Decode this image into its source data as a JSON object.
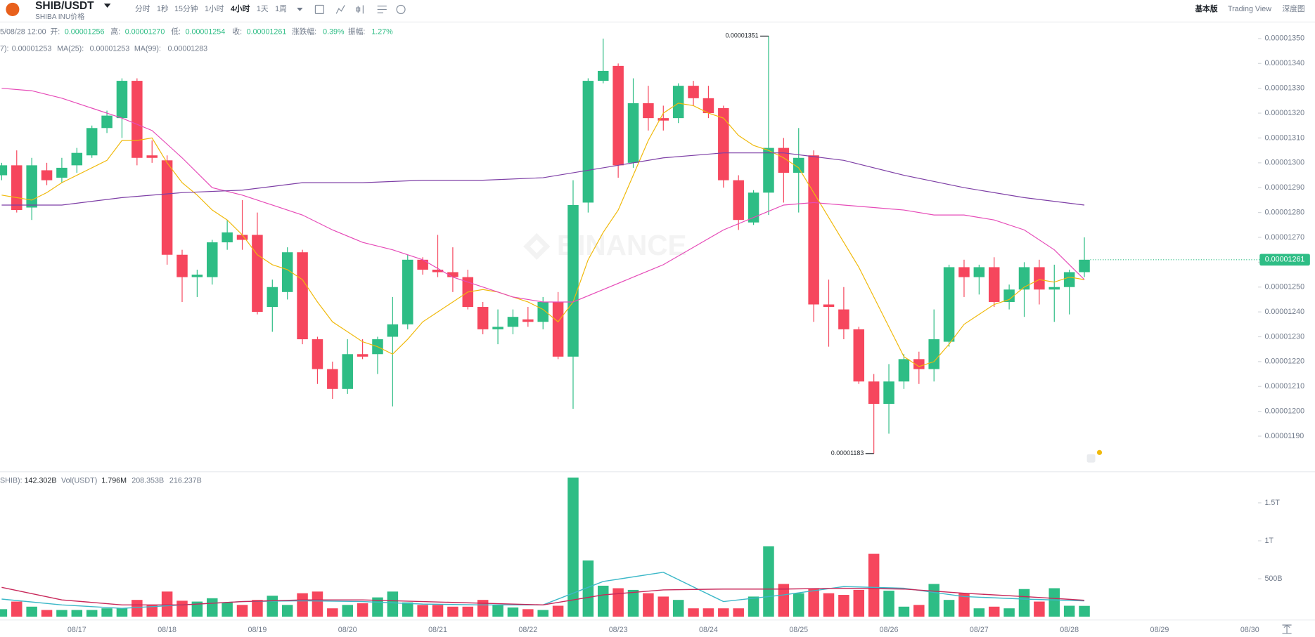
{
  "header": {
    "pair": "SHIB/USDT",
    "subtitle": "SHIBA INU价格",
    "intervals": [
      "分时",
      "1秒",
      "15分钟",
      "1小时",
      "4小时",
      "1天",
      "1周"
    ],
    "views": [
      "基本版",
      "Trading View",
      "深度图"
    ],
    "ohlc": {
      "time": "5/08/28 12:00",
      "labels": [
        "开:",
        "高:",
        "低:",
        "收:",
        "涨跌幅:",
        "振幅:"
      ],
      "values": [
        "0.00001256",
        "0.00001270",
        "0.00001254",
        "0.00001261",
        "0.39%",
        "1.27%"
      ]
    },
    "watermark": "BINANCE"
  },
  "chart_data": [
    {
      "type": "candlestick",
      "up_color": "#2ebd85",
      "down_color": "#f6465d",
      "open": [
        1.295e-05,
        1.299e-05,
        1.282e-05,
        1.297e-05,
        1.294e-05,
        1.299e-05,
        1.303e-05,
        1.314e-05,
        1.318e-05,
        1.333e-05,
        1.303e-05,
        1.301e-05,
        1.263e-05,
        1.254e-05,
        1.254e-05,
        1.268e-05,
        1.271e-05,
        1.271e-05,
        1.242e-05,
        1.248e-05,
        1.264e-05,
        1.229e-05,
        1.217e-05,
        1.209e-05,
        1.223e-05,
        1.223e-05,
        1.23e-05,
        1.235e-05,
        1.261e-05,
        1.257e-05,
        1.256e-05,
        1.254e-05,
        1.242e-05,
        1.233e-05,
        1.234e-05,
        1.237e-05,
        1.236e-05,
        1.244e-05,
        1.222e-05,
        1.284e-05,
        1.333e-05,
        1.339e-05,
        1.3e-05,
        1.324e-05,
        1.318e-05,
        1.318e-05,
        1.331e-05,
        1.326e-05,
        1.322e-05,
        1.293e-05,
        1.276e-05,
        1.288e-05,
        1.306e-05,
        1.296e-05,
        1.303e-05,
        1.243e-05,
        1.241e-05,
        1.233e-05,
        1.212e-05,
        1.203e-05,
        1.212e-05,
        1.221e-05,
        1.217e-05,
        1.228e-05,
        1.258e-05,
        1.254e-05,
        1.258e-05,
        1.244e-05,
        1.249e-05,
        1.258e-05,
        1.249e-05,
        1.25e-05,
        1.256e-05
      ],
      "high": [
        1.3e-05,
        1.305e-05,
        1.302e-05,
        1.3e-05,
        1.302e-05,
        1.306e-05,
        1.315e-05,
        1.321e-05,
        1.334e-05,
        1.334e-05,
        1.309e-05,
        1.303e-05,
        1.265e-05,
        1.257e-05,
        1.269e-05,
        1.277e-05,
        1.285e-05,
        1.28e-05,
        1.253e-05,
        1.266e-05,
        1.265e-05,
        1.23e-05,
        1.22e-05,
        1.229e-05,
        1.229e-05,
        1.23e-05,
        1.246e-05,
        1.263e-05,
        1.262e-05,
        1.271e-05,
        1.266e-05,
        1.257e-05,
        1.244e-05,
        1.241e-05,
        1.241e-05,
        1.242e-05,
        1.246e-05,
        1.248e-05,
        1.293e-05,
        1.334e-05,
        1.35e-05,
        1.34e-05,
        1.334e-05,
        1.331e-05,
        1.323e-05,
        1.332e-05,
        1.333e-05,
        1.331e-05,
        1.323e-05,
        1.295e-05,
        1.289e-05,
        1.351e-05,
        1.31e-05,
        1.314e-05,
        1.305e-05,
        1.253e-05,
        1.25e-05,
        1.234e-05,
        1.215e-05,
        1.219e-05,
        1.223e-05,
        1.224e-05,
        1.241e-05,
        1.259e-05,
        1.261e-05,
        1.259e-05,
        1.262e-05,
        1.251e-05,
        1.26e-05,
        1.261e-05,
        1.259e-05,
        1.257e-05,
        1.27e-05
      ],
      "low": [
        1.293e-05,
        1.28e-05,
        1.277e-05,
        1.291e-05,
        1.292e-05,
        1.296e-05,
        1.302e-05,
        1.312e-05,
        1.31e-05,
        1.299e-05,
        1.3e-05,
        1.259e-05,
        1.244e-05,
        1.246e-05,
        1.251e-05,
        1.265e-05,
        1.265e-05,
        1.239e-05,
        1.232e-05,
        1.245e-05,
        1.227e-05,
        1.211e-05,
        1.205e-05,
        1.207e-05,
        1.221e-05,
        1.215e-05,
        1.202e-05,
        1.233e-05,
        1.255e-05,
        1.254e-05,
        1.248e-05,
        1.241e-05,
        1.231e-05,
        1.227e-05,
        1.231e-05,
        1.234e-05,
        1.233e-05,
        1.221e-05,
        1.201e-05,
        1.28e-05,
        1.332e-05,
        1.294e-05,
        1.298e-05,
        1.313e-05,
        1.313e-05,
        1.316e-05,
        1.323e-05,
        1.318e-05,
        1.29e-05,
        1.273e-05,
        1.275e-05,
        1.279e-05,
        1.284e-05,
        1.28e-05,
        1.236e-05,
        1.226e-05,
        1.229e-05,
        1.211e-05,
        1.183e-05,
        1.191e-05,
        1.209e-05,
        1.211e-05,
        1.212e-05,
        1.226e-05,
        1.246e-05,
        1.247e-05,
        1.242e-05,
        1.241e-05,
        1.238e-05,
        1.243e-05,
        1.236e-05,
        1.239e-05,
        1.254e-05
      ],
      "close": [
        1.299e-05,
        1.281e-05,
        1.299e-05,
        1.293e-05,
        1.298e-05,
        1.304e-05,
        1.314e-05,
        1.319e-05,
        1.333e-05,
        1.302e-05,
        1.302e-05,
        1.263e-05,
        1.254e-05,
        1.255e-05,
        1.268e-05,
        1.272e-05,
        1.269e-05,
        1.24e-05,
        1.25e-05,
        1.264e-05,
        1.229e-05,
        1.217e-05,
        1.209e-05,
        1.223e-05,
        1.222e-05,
        1.229e-05,
        1.235e-05,
        1.261e-05,
        1.257e-05,
        1.256e-05,
        1.254e-05,
        1.242e-05,
        1.233e-05,
        1.234e-05,
        1.238e-05,
        1.236e-05,
        1.244e-05,
        1.222e-05,
        1.283e-05,
        1.333e-05,
        1.337e-05,
        1.299e-05,
        1.324e-05,
        1.318e-05,
        1.317e-05,
        1.331e-05,
        1.326e-05,
        1.32e-05,
        1.293e-05,
        1.277e-05,
        1.288e-05,
        1.306e-05,
        1.296e-05,
        1.302e-05,
        1.243e-05,
        1.242e-05,
        1.233e-05,
        1.212e-05,
        1.203e-05,
        1.212e-05,
        1.221e-05,
        1.217e-05,
        1.229e-05,
        1.258e-05,
        1.254e-05,
        1.258e-05,
        1.244e-05,
        1.249e-05,
        1.258e-05,
        1.249e-05,
        1.25e-05,
        1.256e-05,
        1.261e-05
      ],
      "series": [
        {
          "name": "7):",
          "color": "#f0b90b",
          "last_label": "0.00001253",
          "values": [
            1.287e-05,
            1.286e-05,
            1.285e-05,
            1.288e-05,
            1.292e-05,
            1.295e-05,
            1.298e-05,
            1.301e-05,
            1.309e-05,
            1.309e-05,
            1.31e-05,
            1.3e-05,
            1.292e-05,
            1.287e-05,
            1.281e-05,
            1.277e-05,
            1.271e-05,
            1.263e-05,
            1.259e-05,
            1.257e-05,
            1.253e-05,
            1.244e-05,
            1.236e-05,
            1.232e-05,
            1.228e-05,
            1.226e-05,
            1.223e-05,
            1.229e-05,
            1.236e-05,
            1.24e-05,
            1.244e-05,
            1.248e-05,
            1.249e-05,
            1.248e-05,
            1.246e-05,
            1.244e-05,
            1.241e-05,
            1.236e-05,
            1.244e-05,
            1.261e-05,
            1.272e-05,
            1.281e-05,
            1.295e-05,
            1.309e-05,
            1.32e-05,
            1.324e-05,
            1.323e-05,
            1.32e-05,
            1.318e-05,
            1.311e-05,
            1.307e-05,
            1.305e-05,
            1.302e-05,
            1.298e-05,
            1.288e-05,
            1.278e-05,
            1.268e-05,
            1.258e-05,
            1.246e-05,
            1.234e-05,
            1.222e-05,
            1.218e-05,
            1.22e-05,
            1.227e-05,
            1.235e-05,
            1.239e-05,
            1.243e-05,
            1.245e-05,
            1.25e-05,
            1.253e-05,
            1.252e-05,
            1.254e-05,
            1.253e-05
          ]
        },
        {
          "name": "MA(25):",
          "color": "#e64bb8",
          "last_label": "0.00001253",
          "values": [
            1.33e-05,
            1.329e-05,
            1.326e-05,
            1.322e-05,
            1.318e-05,
            1.313e-05,
            1.302e-05,
            1.29e-05,
            1.287e-05,
            1.283e-05,
            1.279e-05,
            1.273e-05,
            1.268e-05,
            1.265e-05,
            1.261e-05,
            1.254e-05,
            1.25e-05,
            1.246e-05,
            1.244e-05,
            1.244e-05,
            1.249e-05,
            1.254e-05,
            1.259e-05,
            1.266e-05,
            1.273e-05,
            1.278e-05,
            1.283e-05,
            1.284e-05,
            1.283e-05,
            1.282e-05,
            1.281e-05,
            1.279e-05,
            1.279e-05,
            1.277e-05,
            1.273e-05,
            1.265e-05,
            1.253e-05
          ]
        },
        {
          "name": "MA(99):",
          "color": "#7e3fa6",
          "last_label": "0.00001283",
          "values": [
            1.283e-05,
            1.283e-05,
            1.286e-05,
            1.288e-05,
            1.289e-05,
            1.292e-05,
            1.292e-05,
            1.293e-05,
            1.293e-05,
            1.294e-05,
            1.298e-05,
            1.302e-05,
            1.304e-05,
            1.304e-05,
            1.301e-05,
            1.295e-05,
            1.29e-05,
            1.286e-05,
            1.283e-05
          ]
        }
      ],
      "annotations": [
        {
          "label": "0.00001351",
          "value": 1.351e-05
        },
        {
          "label": "0.00001183",
          "value": 1.183e-05
        }
      ],
      "last_price_label": "0.00001261",
      "ylim": [
        1.176e-05,
        1.356e-05
      ],
      "yticks": [
        {
          "value": 1.19e-05,
          "label": "0.00001190"
        },
        {
          "value": 1.2e-05,
          "label": "0.00001200"
        },
        {
          "value": 1.21e-05,
          "label": "0.00001210"
        },
        {
          "value": 1.22e-05,
          "label": "0.00001220"
        },
        {
          "value": 1.23e-05,
          "label": "0.00001230"
        },
        {
          "value": 1.24e-05,
          "label": "0.00001240"
        },
        {
          "value": 1.25e-05,
          "label": "0.00001250"
        },
        {
          "value": 1.26e-05,
          "label": "0.00001260"
        },
        {
          "value": 1.27e-05,
          "label": "0.00001270"
        },
        {
          "value": 1.28e-05,
          "label": "0.00001280"
        },
        {
          "value": 1.29e-05,
          "label": "0.00001290"
        },
        {
          "value": 1.3e-05,
          "label": "0.00001300"
        },
        {
          "value": 1.31e-05,
          "label": "0.00001310"
        },
        {
          "value": 1.32e-05,
          "label": "0.00001320"
        },
        {
          "value": 1.33e-05,
          "label": "0.00001330"
        },
        {
          "value": 1.34e-05,
          "label": "0.00001340"
        },
        {
          "value": 1.35e-05,
          "label": "0.00001350"
        }
      ],
      "xticks": [
        "08/17",
        "08/18",
        "08/19",
        "08/20",
        "08/21",
        "08/22",
        "08/23",
        "08/24",
        "08/25",
        "08/26",
        "08/27",
        "08/28",
        "08/29",
        "08/30"
      ]
    },
    {
      "type": "bar",
      "name": "SHIB):",
      "value_label": "142.302B",
      "extra_name": "Vol(USDT)",
      "extra_label": "1.796M",
      "values": [
        99,
        199,
        132,
        88,
        88,
        88,
        88,
        110,
        110,
        221,
        155,
        331,
        210,
        199,
        243,
        188,
        155,
        221,
        276,
        155,
        309,
        331,
        110,
        155,
        177,
        254,
        331,
        188,
        155,
        155,
        132,
        132,
        221,
        155,
        121,
        99,
        88,
        144,
        1833,
        740,
        408,
        375,
        353,
        309,
        265,
        221,
        110,
        110,
        110,
        110,
        265,
        927,
        431,
        309,
        375,
        309,
        287,
        353,
        828,
        342,
        132,
        155,
        431,
        221,
        309,
        110,
        132,
        110,
        364,
        199,
        375,
        144,
        142.302
      ],
      "series": [
        {
          "color": "#3cb8c8",
          "value_label": "208.353B",
          "values": [
            232,
            155,
            110,
            155,
            199,
            210,
            199,
            166,
            155,
            155,
            464,
            585,
            199,
            287,
            397,
            375,
            265,
            232,
            208.353
          ]
        },
        {
          "color": "#c8285a",
          "value_label": "216.237B",
          "values": [
            386,
            221,
            155,
            155,
            199,
            221,
            221,
            199,
            177,
            155,
            287,
            353,
            364,
            364,
            375,
            364,
            309,
            265,
            216.237
          ]
        }
      ],
      "ylim": [
        0,
        1887
      ],
      "yticks": [
        {
          "value": 500,
          "label": "500B"
        },
        {
          "value": 1000,
          "label": "1T"
        },
        {
          "value": 1500,
          "label": "1.5T"
        }
      ]
    }
  ]
}
